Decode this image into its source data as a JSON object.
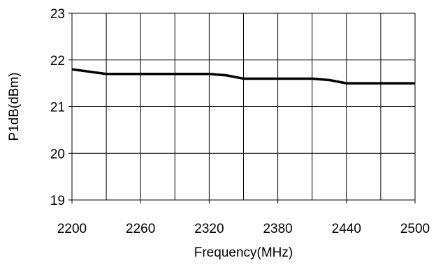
{
  "chart_data": {
    "type": "line",
    "title": "",
    "xlabel": "Frequency(MHz)",
    "ylabel": "P1dB(dBm)",
    "xlim": [
      2200,
      2500
    ],
    "ylim": [
      19,
      23
    ],
    "xticks": [
      2200,
      2260,
      2320,
      2380,
      2440,
      2500
    ],
    "yticks": [
      19,
      20,
      21,
      22,
      23
    ],
    "x_tick_labels": [
      "2200",
      "2260",
      "2320",
      "2380",
      "2440",
      "2500"
    ],
    "y_tick_labels": [
      "19",
      "20",
      "21",
      "22",
      "23"
    ],
    "x_gridlines": [
      2200,
      2230,
      2260,
      2290,
      2320,
      2350,
      2380,
      2410,
      2440,
      2470,
      2500
    ],
    "y_gridlines": [
      19,
      20,
      21,
      22,
      23
    ],
    "grid": true,
    "legend": "none",
    "colors": {
      "line": "#000000",
      "grid": "#000000",
      "background": "#ffffff"
    },
    "series": [
      {
        "x": [
          2200,
          2230,
          2260,
          2290,
          2320,
          2335,
          2350,
          2380,
          2410,
          2425,
          2440,
          2470,
          2500
        ],
        "y": [
          21.8,
          21.7,
          21.7,
          21.7,
          21.7,
          21.67,
          21.6,
          21.6,
          21.6,
          21.57,
          21.5,
          21.5,
          21.5
        ]
      }
    ]
  }
}
